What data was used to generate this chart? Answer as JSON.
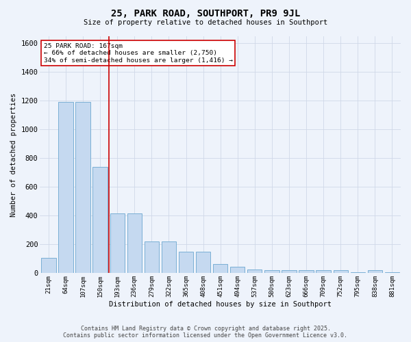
{
  "title_line1": "25, PARK ROAD, SOUTHPORT, PR9 9JL",
  "title_line2": "Size of property relative to detached houses in Southport",
  "xlabel": "Distribution of detached houses by size in Southport",
  "ylabel": "Number of detached properties",
  "categories": [
    "21sqm",
    "64sqm",
    "107sqm",
    "150sqm",
    "193sqm",
    "236sqm",
    "279sqm",
    "322sqm",
    "365sqm",
    "408sqm",
    "451sqm",
    "494sqm",
    "537sqm",
    "580sqm",
    "623sqm",
    "666sqm",
    "709sqm",
    "752sqm",
    "795sqm",
    "838sqm",
    "881sqm"
  ],
  "values": [
    105,
    1190,
    1190,
    740,
    415,
    415,
    220,
    220,
    150,
    150,
    65,
    45,
    25,
    20,
    20,
    20,
    20,
    20,
    5,
    20,
    5
  ],
  "bar_color": "#c5d9f0",
  "bar_edge_color": "#7aafd4",
  "background_color": "#eef3fb",
  "grid_color": "#d0d8e8",
  "red_line_x": 3.5,
  "red_line_color": "#cc0000",
  "annotation_text": "25 PARK ROAD: 167sqm\n← 66% of detached houses are smaller (2,750)\n34% of semi-detached houses are larger (1,416) →",
  "annotation_box_color": "#ffffff",
  "annotation_box_edge": "#cc0000",
  "ylim": [
    0,
    1650
  ],
  "yticks": [
    0,
    200,
    400,
    600,
    800,
    1000,
    1200,
    1400,
    1600
  ],
  "footer_line1": "Contains HM Land Registry data © Crown copyright and database right 2025.",
  "footer_line2": "Contains public sector information licensed under the Open Government Licence v3.0."
}
